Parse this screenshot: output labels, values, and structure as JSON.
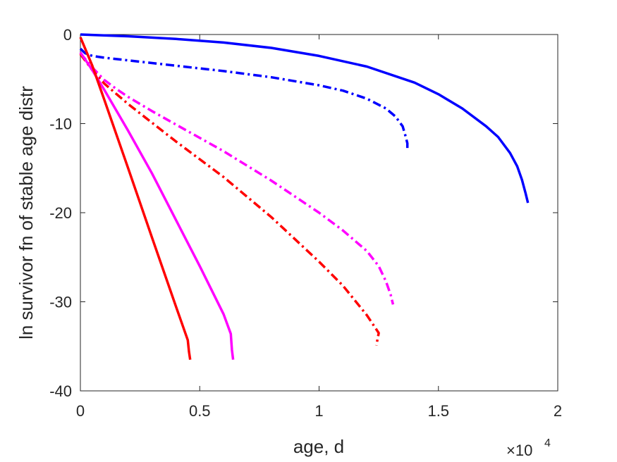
{
  "chart_data": {
    "type": "line",
    "title": "",
    "xlabel": "age, d",
    "ylabel": "ln survivor fn of stable age distr",
    "x_exponent_label": "×10",
    "x_exponent_power": "4",
    "xlim": [
      0,
      2
    ],
    "ylim": [
      -40,
      0
    ],
    "xticks": [
      0,
      0.5,
      1,
      1.5,
      2
    ],
    "xtick_labels": [
      "0",
      "0.5",
      "1",
      "1.5",
      "2"
    ],
    "yticks": [
      0,
      -10,
      -20,
      -30,
      -40
    ],
    "ytick_labels": [
      "0",
      "-10",
      "-20",
      "-30",
      "-40"
    ],
    "grid": false,
    "legend": "none",
    "series": [
      {
        "color": "#0000ff",
        "style": "solid",
        "points": [
          [
            0,
            0
          ],
          [
            0.2,
            -0.2
          ],
          [
            0.4,
            -0.5
          ],
          [
            0.6,
            -0.9
          ],
          [
            0.8,
            -1.5
          ],
          [
            1.0,
            -2.4
          ],
          [
            1.2,
            -3.6
          ],
          [
            1.4,
            -5.4
          ],
          [
            1.5,
            -6.7
          ],
          [
            1.6,
            -8.3
          ],
          [
            1.7,
            -10.3
          ],
          [
            1.75,
            -11.5
          ],
          [
            1.8,
            -13.3
          ],
          [
            1.83,
            -14.8
          ],
          [
            1.85,
            -16.3
          ],
          [
            1.865,
            -17.8
          ],
          [
            1.875,
            -18.9
          ]
        ]
      },
      {
        "color": "#0000ff",
        "style": "dashdot",
        "points": [
          [
            0,
            -1.6
          ],
          [
            0.02,
            -2.1
          ],
          [
            0.05,
            -2.4
          ],
          [
            0.1,
            -2.6
          ],
          [
            0.2,
            -2.9
          ],
          [
            0.4,
            -3.5
          ],
          [
            0.6,
            -4.1
          ],
          [
            0.8,
            -4.8
          ],
          [
            1.0,
            -5.7
          ],
          [
            1.1,
            -6.3
          ],
          [
            1.2,
            -7.2
          ],
          [
            1.28,
            -8.3
          ],
          [
            1.32,
            -9.2
          ],
          [
            1.35,
            -10.3
          ],
          [
            1.36,
            -11.2
          ],
          [
            1.37,
            -12.2
          ],
          [
            1.37,
            -12.9
          ]
        ]
      },
      {
        "color": "#ff00ff",
        "style": "dashdot",
        "points": [
          [
            0,
            -2.1
          ],
          [
            0.05,
            -3.7
          ],
          [
            0.1,
            -5.1
          ],
          [
            0.15,
            -6.1
          ],
          [
            0.2,
            -7.0
          ],
          [
            0.3,
            -8.6
          ],
          [
            0.4,
            -10.1
          ],
          [
            0.6,
            -13.1
          ],
          [
            0.8,
            -16.4
          ],
          [
            1.0,
            -20.0
          ],
          [
            1.1,
            -22.0
          ],
          [
            1.2,
            -24.3
          ],
          [
            1.25,
            -26.0
          ],
          [
            1.28,
            -27.7
          ],
          [
            1.3,
            -29.2
          ],
          [
            1.31,
            -30.3
          ]
        ]
      },
      {
        "color": "#ff0000",
        "style": "dashdot",
        "points": [
          [
            0,
            -2.2
          ],
          [
            0.05,
            -4.0
          ],
          [
            0.1,
            -5.5
          ],
          [
            0.2,
            -7.8
          ],
          [
            0.4,
            -12.0
          ],
          [
            0.6,
            -16.0
          ],
          [
            0.8,
            -20.5
          ],
          [
            1.0,
            -25.5
          ],
          [
            1.1,
            -28.2
          ],
          [
            1.2,
            -31.5
          ],
          [
            1.25,
            -33.5
          ],
          [
            1.24,
            -34.9
          ]
        ]
      },
      {
        "color": "#ff00ff",
        "style": "solid",
        "points": [
          [
            0,
            -2.0
          ],
          [
            0.05,
            -4.0
          ],
          [
            0.1,
            -6.2
          ],
          [
            0.2,
            -10.8
          ],
          [
            0.3,
            -15.6
          ],
          [
            0.4,
            -20.8
          ],
          [
            0.5,
            -26.0
          ],
          [
            0.6,
            -31.4
          ],
          [
            0.63,
            -33.6
          ],
          [
            0.635,
            -35.4
          ],
          [
            0.64,
            -36.5
          ]
        ]
      },
      {
        "color": "#ff0000",
        "style": "solid",
        "points": [
          [
            0,
            -0.3
          ],
          [
            0.05,
            -3.5
          ],
          [
            0.1,
            -7.3
          ],
          [
            0.2,
            -15.0
          ],
          [
            0.3,
            -22.8
          ],
          [
            0.4,
            -30.5
          ],
          [
            0.45,
            -34.3
          ],
          [
            0.455,
            -35.6
          ],
          [
            0.46,
            -36.5
          ]
        ]
      }
    ]
  }
}
